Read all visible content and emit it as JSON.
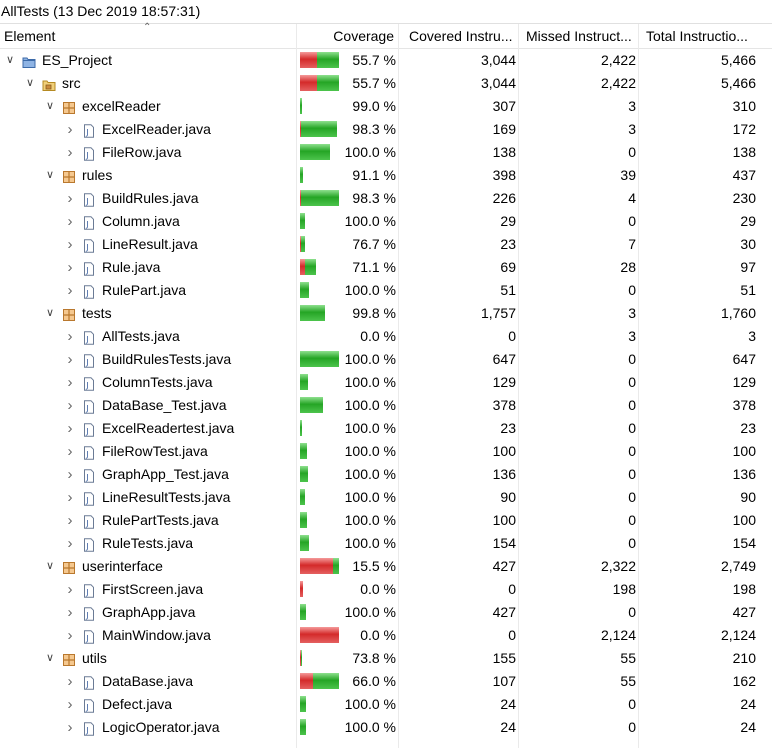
{
  "window": {
    "title": "AllTests (13 Dec 2019 18:57:31)"
  },
  "columns": {
    "element": "Element",
    "coverage": "Coverage",
    "covered": "Covered Instru...",
    "missed": "Missed Instruct...",
    "total": "Total Instructio..."
  },
  "colors": {
    "covered": "#2ca82c",
    "missed": "#d42a2a",
    "selection": "#cce8ff"
  },
  "rows": [
    {
      "name": "ES_Project",
      "icon": "project-icon",
      "level": 0,
      "expanded": true,
      "coverage": "55.7 %",
      "covered": "3,044",
      "missed": "2,422",
      "total": "5,466",
      "bar_fraction": 1.0,
      "covered_ratio": 0.557
    },
    {
      "name": "src",
      "icon": "source-folder-icon",
      "level": 1,
      "expanded": true,
      "coverage": "55.7 %",
      "covered": "3,044",
      "missed": "2,422",
      "total": "5,466",
      "bar_fraction": 1.0,
      "covered_ratio": 0.557
    },
    {
      "name": "excelReader",
      "icon": "package-icon",
      "level": 2,
      "expanded": true,
      "coverage": "99.0 %",
      "covered": "307",
      "missed": "3",
      "total": "310",
      "bar_fraction": 0.06,
      "covered_ratio": 0.99
    },
    {
      "name": "ExcelReader.java",
      "icon": "java-file-icon",
      "level": 3,
      "expanded": false,
      "coverage": "98.3 %",
      "covered": "169",
      "missed": "3",
      "total": "172",
      "bar_fraction": 0.95,
      "covered_ratio": 0.983
    },
    {
      "name": "FileRow.java",
      "icon": "java-file-icon",
      "level": 3,
      "expanded": false,
      "coverage": "100.0 %",
      "covered": "138",
      "missed": "0",
      "total": "138",
      "bar_fraction": 0.77,
      "covered_ratio": 1.0
    },
    {
      "name": "rules",
      "icon": "package-icon",
      "level": 2,
      "expanded": true,
      "coverage": "91.1 %",
      "covered": "398",
      "missed": "39",
      "total": "437",
      "bar_fraction": 0.08,
      "covered_ratio": 0.911
    },
    {
      "name": "BuildRules.java",
      "icon": "java-file-icon",
      "level": 3,
      "expanded": false,
      "coverage": "98.3 %",
      "covered": "226",
      "missed": "4",
      "total": "230",
      "bar_fraction": 1.0,
      "covered_ratio": 0.983
    },
    {
      "name": "Column.java",
      "icon": "java-file-icon",
      "level": 3,
      "expanded": false,
      "coverage": "100.0 %",
      "covered": "29",
      "missed": "0",
      "total": "29",
      "bar_fraction": 0.12,
      "covered_ratio": 1.0
    },
    {
      "name": "LineResult.java",
      "icon": "java-file-icon",
      "level": 3,
      "expanded": false,
      "coverage": "76.7 %",
      "covered": "23",
      "missed": "7",
      "total": "30",
      "bar_fraction": 0.12,
      "covered_ratio": 0.767
    },
    {
      "name": "Rule.java",
      "icon": "java-file-icon",
      "level": 3,
      "expanded": false,
      "coverage": "71.1 %",
      "covered": "69",
      "missed": "28",
      "total": "97",
      "bar_fraction": 0.42,
      "covered_ratio": 0.711
    },
    {
      "name": "RulePart.java",
      "icon": "java-file-icon",
      "level": 3,
      "expanded": false,
      "coverage": "100.0 %",
      "covered": "51",
      "missed": "0",
      "total": "51",
      "bar_fraction": 0.22,
      "covered_ratio": 1.0
    },
    {
      "name": "tests",
      "icon": "package-icon",
      "level": 2,
      "expanded": true,
      "coverage": "99.8 %",
      "covered": "1,757",
      "missed": "3",
      "total": "1,760",
      "bar_fraction": 0.64,
      "covered_ratio": 0.998
    },
    {
      "name": "AllTests.java",
      "icon": "java-file-icon",
      "level": 3,
      "expanded": false,
      "coverage": "0.0 %",
      "covered": "0",
      "missed": "3",
      "total": "3",
      "bar_fraction": 0.0,
      "covered_ratio": 0.0
    },
    {
      "name": "BuildRulesTests.java",
      "icon": "java-file-icon",
      "level": 3,
      "expanded": false,
      "coverage": "100.0 %",
      "covered": "647",
      "missed": "0",
      "total": "647",
      "bar_fraction": 1.0,
      "covered_ratio": 1.0
    },
    {
      "name": "ColumnTests.java",
      "icon": "java-file-icon",
      "level": 3,
      "expanded": false,
      "coverage": "100.0 %",
      "covered": "129",
      "missed": "0",
      "total": "129",
      "bar_fraction": 0.2,
      "covered_ratio": 1.0
    },
    {
      "name": "DataBase_Test.java",
      "icon": "java-file-icon",
      "level": 3,
      "expanded": false,
      "coverage": "100.0 %",
      "covered": "378",
      "missed": "0",
      "total": "378",
      "bar_fraction": 0.58,
      "covered_ratio": 1.0
    },
    {
      "name": "ExcelReadertest.java",
      "icon": "java-file-icon",
      "level": 3,
      "expanded": false,
      "coverage": "100.0 %",
      "covered": "23",
      "missed": "0",
      "total": "23",
      "bar_fraction": 0.04,
      "covered_ratio": 1.0
    },
    {
      "name": "FileRowTest.java",
      "icon": "java-file-icon",
      "level": 3,
      "expanded": false,
      "coverage": "100.0 %",
      "covered": "100",
      "missed": "0",
      "total": "100",
      "bar_fraction": 0.17,
      "covered_ratio": 1.0
    },
    {
      "name": "GraphApp_Test.java",
      "icon": "java-file-icon",
      "level": 3,
      "expanded": false,
      "coverage": "100.0 %",
      "covered": "136",
      "missed": "0",
      "total": "136",
      "bar_fraction": 0.21,
      "covered_ratio": 1.0
    },
    {
      "name": "LineResultTests.java",
      "icon": "java-file-icon",
      "level": 3,
      "expanded": false,
      "coverage": "100.0 %",
      "covered": "90",
      "missed": "0",
      "total": "90",
      "bar_fraction": 0.14,
      "covered_ratio": 1.0
    },
    {
      "name": "RulePartTests.java",
      "icon": "java-file-icon",
      "level": 3,
      "expanded": false,
      "coverage": "100.0 %",
      "covered": "100",
      "missed": "0",
      "total": "100",
      "bar_fraction": 0.17,
      "covered_ratio": 1.0
    },
    {
      "name": "RuleTests.java",
      "icon": "java-file-icon",
      "level": 3,
      "expanded": false,
      "coverage": "100.0 %",
      "covered": "154",
      "missed": "0",
      "total": "154",
      "bar_fraction": 0.24,
      "covered_ratio": 1.0
    },
    {
      "name": "userinterface",
      "icon": "package-icon",
      "level": 2,
      "expanded": true,
      "coverage": "15.5 %",
      "covered": "427",
      "missed": "2,322",
      "total": "2,749",
      "bar_fraction": 1.0,
      "covered_ratio": 0.155
    },
    {
      "name": "FirstScreen.java",
      "icon": "java-file-icon",
      "level": 3,
      "expanded": false,
      "coverage": "0.0 %",
      "covered": "0",
      "missed": "198",
      "total": "198",
      "bar_fraction": 0.07,
      "covered_ratio": 0.0
    },
    {
      "name": "GraphApp.java",
      "icon": "java-file-icon",
      "level": 3,
      "expanded": false,
      "coverage": "100.0 %",
      "covered": "427",
      "missed": "0",
      "total": "427",
      "bar_fraction": 0.16,
      "covered_ratio": 1.0
    },
    {
      "name": "MainWindow.java",
      "icon": "java-file-icon",
      "level": 3,
      "expanded": false,
      "coverage": "0.0 %",
      "covered": "0",
      "missed": "2,124",
      "total": "2,124",
      "bar_fraction": 1.0,
      "covered_ratio": 0.0
    },
    {
      "name": "utils",
      "icon": "package-icon",
      "level": 2,
      "expanded": true,
      "coverage": "73.8 %",
      "covered": "155",
      "missed": "55",
      "total": "210",
      "bar_fraction": 0.05,
      "covered_ratio": 0.738
    },
    {
      "name": "DataBase.java",
      "icon": "java-file-icon",
      "level": 3,
      "expanded": false,
      "coverage": "66.0 %",
      "covered": "107",
      "missed": "55",
      "total": "162",
      "bar_fraction": 1.0,
      "covered_ratio": 0.66
    },
    {
      "name": "Defect.java",
      "icon": "java-file-icon",
      "level": 3,
      "expanded": false,
      "coverage": "100.0 %",
      "covered": "24",
      "missed": "0",
      "total": "24",
      "bar_fraction": 0.15,
      "covered_ratio": 1.0
    },
    {
      "name": "LogicOperator.java",
      "icon": "java-file-icon",
      "level": 3,
      "expanded": false,
      "coverage": "100.0 %",
      "covered": "24",
      "missed": "0",
      "total": "24",
      "bar_fraction": 0.15,
      "covered_ratio": 1.0
    }
  ]
}
